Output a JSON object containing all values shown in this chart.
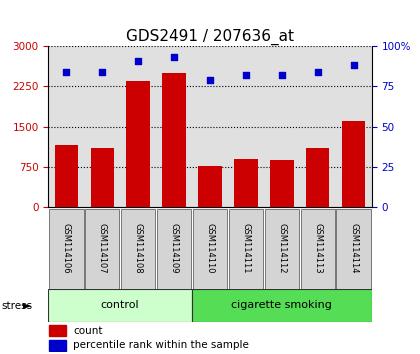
{
  "title": "GDS2491 / 207636_at",
  "samples": [
    "GSM114106",
    "GSM114107",
    "GSM114108",
    "GSM114109",
    "GSM114110",
    "GSM114111",
    "GSM114112",
    "GSM114113",
    "GSM114114"
  ],
  "counts": [
    1150,
    1100,
    2350,
    2500,
    770,
    890,
    880,
    1100,
    1600
  ],
  "percentile_ranks": [
    84,
    84,
    91,
    93,
    79,
    82,
    82,
    84,
    88
  ],
  "groups": [
    {
      "label": "control",
      "start": 0,
      "end": 4,
      "color": "#ccffcc"
    },
    {
      "label": "cigarette smoking",
      "start": 4,
      "end": 9,
      "color": "#55dd55"
    }
  ],
  "bar_color": "#cc0000",
  "dot_color": "#0000cc",
  "left_ylim": [
    0,
    3000
  ],
  "right_ylim": [
    0,
    100
  ],
  "left_yticks": [
    0,
    750,
    1500,
    2250,
    3000
  ],
  "right_yticks": [
    0,
    25,
    50,
    75,
    100
  ],
  "right_yticklabels": [
    "0",
    "25",
    "50",
    "75",
    "100%"
  ],
  "title_fontsize": 11,
  "background_color": "#ffffff",
  "plot_bg_color": "#e0e0e0",
  "stress_label": "stress",
  "legend_count_label": "count",
  "legend_pct_label": "percentile rank within the sample"
}
